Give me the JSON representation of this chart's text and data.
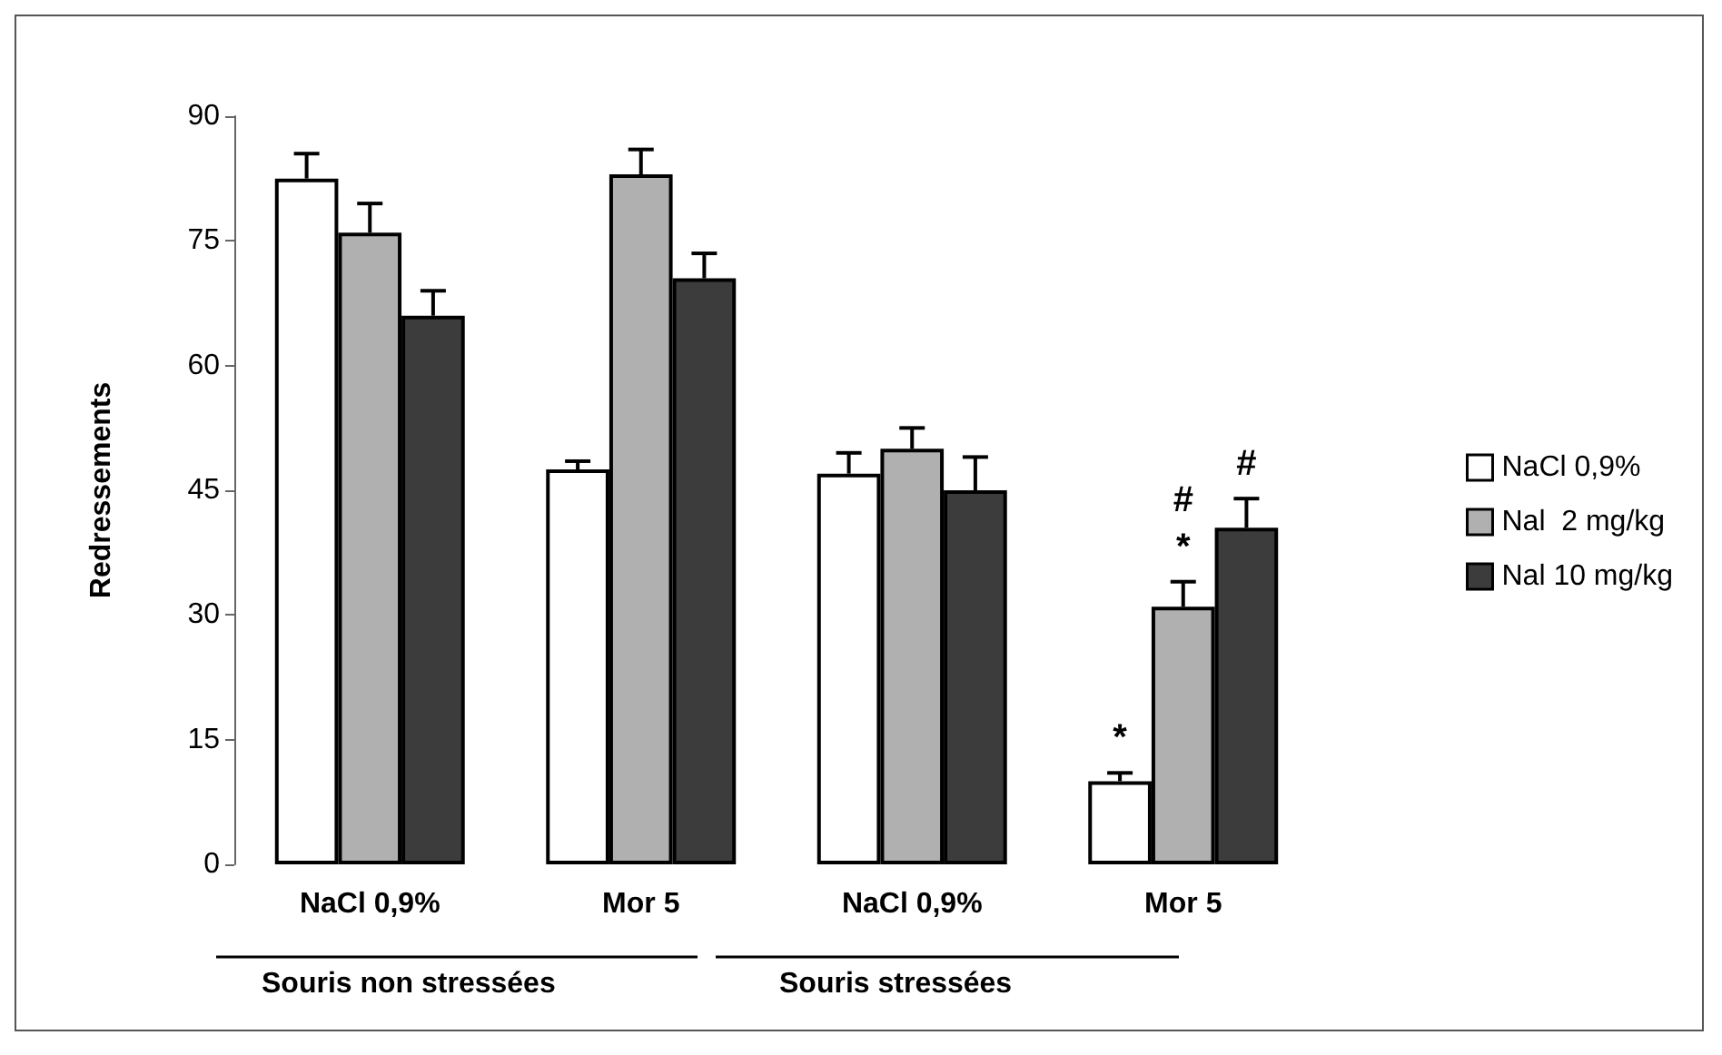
{
  "chart_data": {
    "type": "bar",
    "ylabel": "Redressements",
    "categories": [
      "NaCl 0,9%",
      "Mor 5",
      "NaCl 0,9%",
      "Mor 5"
    ],
    "series": [
      {
        "name": "NaCl 0,9%",
        "color": "#ffffff",
        "values": [
          82.5,
          47.5,
          47,
          10
        ],
        "errors": [
          [
            82.5,
            85.5
          ],
          [
            47.5,
            48.5
          ],
          [
            47,
            49.5
          ],
          [
            10,
            11
          ]
        ],
        "value_labels": [
          null,
          null,
          null,
          "*"
        ]
      },
      {
        "name": "Nal  2 mg/kg",
        "color": "#b0b0b0",
        "values": [
          76,
          83,
          50,
          31
        ],
        "errors": [
          [
            76,
            79.5
          ],
          [
            83,
            86
          ],
          [
            50,
            52.5
          ],
          [
            31,
            34
          ]
        ],
        "value_labels": [
          null,
          null,
          null,
          "#\n*"
        ]
      },
      {
        "name": "Nal 10 mg/kg",
        "color": "#3c3c3c",
        "values": [
          66,
          70.5,
          45,
          40.5
        ],
        "errors": [
          [
            66,
            69
          ],
          [
            70.5,
            73.5
          ],
          [
            45,
            49
          ],
          [
            40.5,
            44
          ]
        ],
        "value_labels": [
          null,
          null,
          null,
          "#"
        ]
      }
    ],
    "annotations": [
      "Souris non stressées",
      "Souris stressées"
    ],
    "ylim": [
      0,
      90
    ],
    "yticks": [
      0,
      15,
      30,
      45,
      60,
      75,
      90
    ],
    "grid": false,
    "legend": "right"
  }
}
